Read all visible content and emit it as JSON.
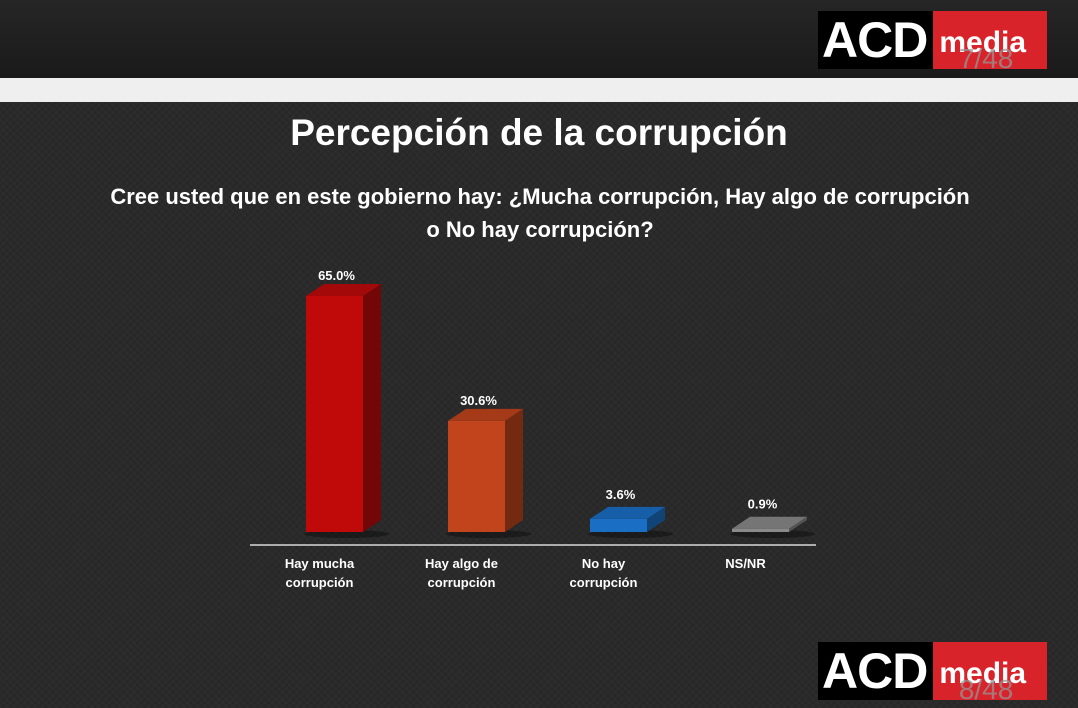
{
  "logo_top": {
    "brand": "ACD",
    "sub": "media",
    "page": "7/48"
  },
  "logo_bottom": {
    "brand": "ACD",
    "sub": "media",
    "page": "8/48"
  },
  "slide": {
    "title": "Percepción de la corrupción",
    "question": "Cree usted que en este gobierno hay: ¿Mucha corrupción, Hay algo de corrupción o No hay corrupción?"
  },
  "chart_data": {
    "type": "bar",
    "categories": [
      [
        "Hay mucha",
        "corrupción"
      ],
      [
        "Hay algo de",
        "corrupción"
      ],
      [
        "No hay",
        "corrupción"
      ],
      [
        "NS/NR"
      ]
    ],
    "values": [
      65.0,
      30.6,
      3.6,
      0.9
    ],
    "labels": [
      "65.0%",
      "30.6%",
      "3.6%",
      "0.9%"
    ],
    "colors": [
      "#c00a0a",
      "#c1441c",
      "#1a6fc4",
      "#8a8a8a"
    ],
    "ylim": [
      0,
      65
    ],
    "grid": false,
    "legend": "none"
  }
}
